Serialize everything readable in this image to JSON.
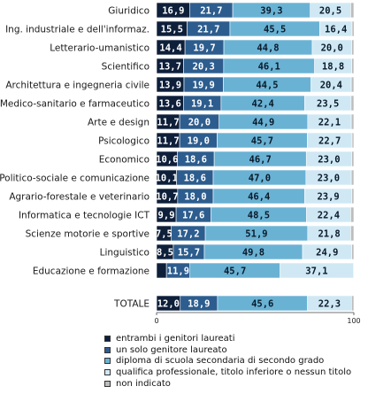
{
  "chart_data": {
    "type": "bar",
    "orientation": "horizontal",
    "stacked": true,
    "categories": [
      "Giuridico",
      "Ing. industriale e dell'informaz.",
      "Letterario-umanistico",
      "Scientifico",
      "Architettura e ingegneria civile",
      "Medico-sanitario e farmaceutico",
      "Arte e design",
      "Psicologico",
      "Economico",
      "Politico-sociale e comunicazione",
      "Agrario-forestale e veterinario",
      "Informatica e tecnologie ICT",
      "Scienze motorie e sportive",
      "Linguistico",
      "Educazione e formazione",
      "TOTALE"
    ],
    "series": [
      {
        "name": "entrambi i genitori laureati",
        "color": "#0e1f3a",
        "label_color": "#ffffff",
        "values": [
          16.9,
          15.5,
          14.4,
          13.7,
          13.9,
          13.6,
          11.7,
          11.7,
          10.6,
          10.1,
          10.7,
          9.9,
          7.5,
          8.5,
          5.0,
          12.0
        ],
        "labels": [
          "16,9",
          "15,5",
          "14,4",
          "13,7",
          "13,9",
          "13,6",
          "11,7",
          "11,7",
          "10,6",
          "10,1",
          "10,7",
          "9,9",
          "7,5",
          "8,5",
          "",
          "12,0"
        ]
      },
      {
        "name": "un solo genitore laureato",
        "color": "#2d5d8e",
        "label_color": "#ffffff",
        "values": [
          21.7,
          21.7,
          19.7,
          20.3,
          19.9,
          19.1,
          20.0,
          19.0,
          18.6,
          18.6,
          18.0,
          17.6,
          17.2,
          15.7,
          11.9,
          18.9
        ],
        "labels": [
          "21,7",
          "21,7",
          "19,7",
          "20,3",
          "19,9",
          "19,1",
          "20,0",
          "19,0",
          "18,6",
          "18,6",
          "18,0",
          "17,6",
          "17,2",
          "15,7",
          "11,9",
          "18,9"
        ]
      },
      {
        "name": "diploma di scuola secondaria di secondo grado",
        "color": "#6ab2d4",
        "label_color": "#0a1a2a",
        "values": [
          39.3,
          45.5,
          44.8,
          46.1,
          44.5,
          42.4,
          44.9,
          45.7,
          46.7,
          47.0,
          46.4,
          48.5,
          51.9,
          49.8,
          45.7,
          45.6
        ],
        "labels": [
          "39,3",
          "45,5",
          "44,8",
          "46,1",
          "44,5",
          "42,4",
          "44,9",
          "45,7",
          "46,7",
          "47,0",
          "46,4",
          "48,5",
          "51,9",
          "49,8",
          "45,7",
          "45,6"
        ]
      },
      {
        "name": "qualifica professionale, titolo inferiore o nessun titolo",
        "color": "#cfe8f4",
        "label_color": "#0a1a2a",
        "values": [
          20.5,
          16.4,
          20.0,
          18.8,
          20.4,
          23.5,
          22.1,
          22.7,
          23.0,
          23.0,
          23.9,
          22.4,
          21.8,
          24.9,
          37.1,
          22.3
        ],
        "labels": [
          "20,5",
          "16,4",
          "20,0",
          "18,8",
          "20,4",
          "23,5",
          "22,1",
          "22,7",
          "23,0",
          "23,0",
          "23,9",
          "22,4",
          "21,8",
          "24,9",
          "37,1",
          "22,3"
        ]
      },
      {
        "name": "non indicato",
        "color": "#bdbdbd",
        "label_color": "#000000",
        "values": [
          1.6,
          1.0,
          1.1,
          1.1,
          1.3,
          1.4,
          1.3,
          0.9,
          1.1,
          1.3,
          1.0,
          1.6,
          1.6,
          1.1,
          0.3,
          1.2
        ],
        "labels": [
          "",
          "",
          "",
          "",
          "",
          "",
          "",
          "",
          "",
          "",
          "",
          "",
          "",
          "",
          "",
          ""
        ]
      }
    ],
    "xlim": [
      0,
      100
    ],
    "xticks": [
      "0",
      "100"
    ],
    "title": "",
    "xlabel": "",
    "ylabel": "",
    "grid": false,
    "legend_position": "bottom"
  }
}
